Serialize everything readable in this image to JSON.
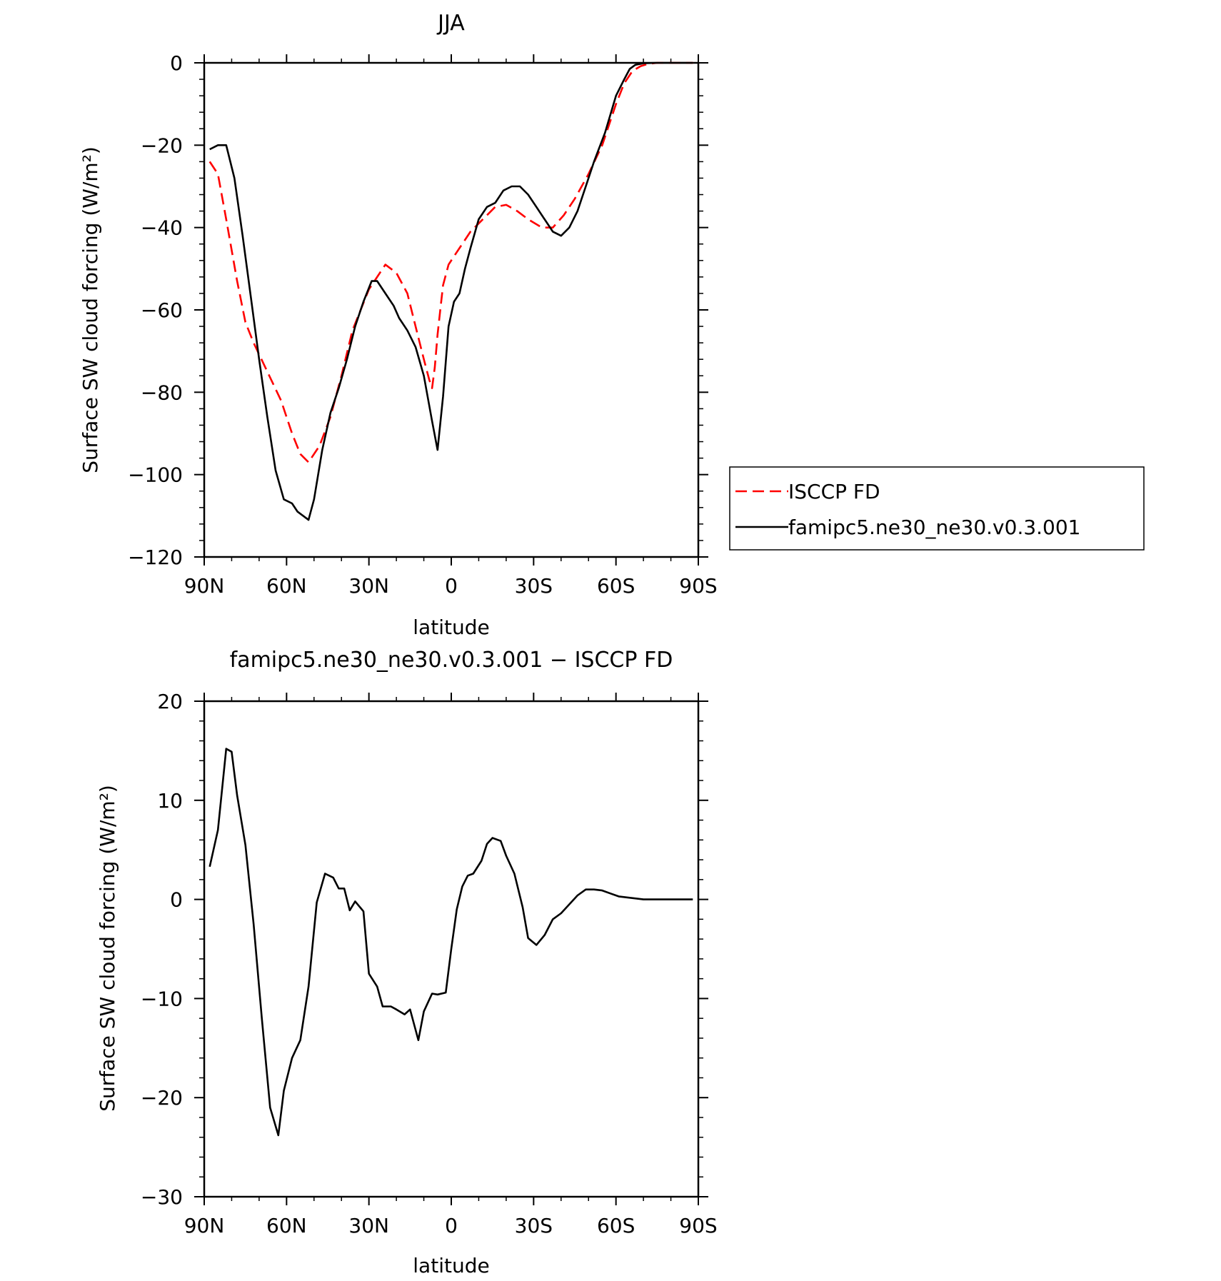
{
  "chart_data": [
    {
      "type": "line",
      "title": "JJA",
      "xlabel": "latitude",
      "ylabel": "Surface SW cloud forcing (W/m²)",
      "xlim": [
        90,
        -90
      ],
      "ylim": [
        -120,
        0
      ],
      "x_ticks": [
        90,
        60,
        30,
        0,
        -30,
        -60,
        -90
      ],
      "x_tick_labels": [
        "90N",
        "60N",
        "30N",
        "0",
        "30S",
        "60S",
        "90S"
      ],
      "y_ticks": [
        0,
        -20,
        -40,
        -60,
        -80,
        -100,
        -120
      ],
      "y_tick_labels": [
        "0",
        "−20",
        "−40",
        "−60",
        "−80",
        "−100",
        "−120"
      ],
      "legend_position": "right",
      "series": [
        {
          "name": "ISCCP FD",
          "color": "#ff0000",
          "dash": "dashed",
          "x": [
            88,
            85,
            82,
            78,
            75,
            72,
            67,
            62,
            58,
            55,
            52,
            48,
            44,
            40,
            36,
            33,
            30,
            27,
            24,
            20,
            16,
            13,
            10,
            8,
            7,
            6,
            5,
            4,
            3,
            1,
            -1,
            -3,
            -5,
            -7,
            -10,
            -13,
            -16,
            -20,
            -24,
            -28,
            -33,
            -37,
            -41,
            -45,
            -50,
            -55,
            -60,
            -63,
            -66,
            -69,
            -72,
            -75,
            -80,
            -85,
            -88
          ],
          "y": [
            -24,
            -27,
            -38,
            -53,
            -63,
            -68,
            -75,
            -82,
            -90,
            -95,
            -97,
            -93,
            -86,
            -76,
            -65,
            -60,
            -55,
            -52,
            -49,
            -51,
            -56,
            -64,
            -72,
            -77,
            -79,
            -74,
            -66,
            -60,
            -54,
            -49,
            -47,
            -45,
            -43,
            -41,
            -39,
            -37,
            -35,
            -34.5,
            -36,
            -38,
            -40,
            -40,
            -37,
            -33,
            -27,
            -20,
            -10,
            -5,
            -2,
            -0.8,
            -0.2,
            0,
            0,
            0,
            0
          ]
        },
        {
          "name": "famipc5.ne30_ne30.v0.3.001",
          "color": "#000000",
          "dash": "solid",
          "x": [
            88,
            85,
            82,
            79,
            76,
            73,
            70,
            67,
            64,
            61,
            58,
            56,
            54,
            52,
            50,
            47,
            44,
            41,
            38,
            35,
            32,
            29,
            27,
            24,
            21,
            19,
            16,
            13,
            10,
            7,
            5,
            3,
            1,
            -1,
            -3,
            -5,
            -7,
            -10,
            -13,
            -16,
            -19,
            -22,
            -25,
            -28,
            -31,
            -34,
            -37,
            -40,
            -43,
            -46,
            -49,
            -52,
            -56,
            -60,
            -63,
            -65,
            -67,
            -70,
            -75,
            -80,
            -85,
            -88
          ],
          "y": [
            -21,
            -20,
            -20,
            -28,
            -42,
            -57,
            -72,
            -86,
            -99,
            -106,
            -107,
            -109,
            -110,
            -111,
            -106,
            -94,
            -85,
            -79,
            -72,
            -64,
            -58,
            -53,
            -53,
            -56,
            -59,
            -62,
            -65,
            -69,
            -76,
            -87,
            -94,
            -81,
            -64,
            -58,
            -56,
            -50,
            -45,
            -38,
            -35,
            -34,
            -31,
            -30,
            -30,
            -32,
            -35,
            -38,
            -41,
            -42,
            -40,
            -36,
            -30,
            -24,
            -17,
            -8,
            -4,
            -1.5,
            -0.5,
            -0.1,
            0,
            0,
            0,
            0
          ]
        }
      ]
    },
    {
      "type": "line",
      "title": "famipc5.ne30_ne30.v0.3.001 − ISCCP FD",
      "xlabel": "latitude",
      "ylabel": "Surface SW cloud forcing (W/m²)",
      "xlim": [
        90,
        -90
      ],
      "ylim": [
        -30,
        20
      ],
      "x_ticks": [
        90,
        60,
        30,
        0,
        -30,
        -60,
        -90
      ],
      "x_tick_labels": [
        "90N",
        "60N",
        "30N",
        "0",
        "30S",
        "60S",
        "90S"
      ],
      "y_ticks": [
        20,
        10,
        0,
        -10,
        -20,
        -30
      ],
      "y_tick_labels": [
        "20",
        "10",
        "0",
        "−10",
        "−20",
        "−30"
      ],
      "series": [
        {
          "color": "#000000",
          "dash": "solid",
          "x": [
            88,
            85,
            82,
            80,
            78,
            75,
            72,
            69,
            66,
            63,
            61,
            58,
            55,
            52,
            49,
            46,
            43,
            41,
            39,
            37,
            35,
            32,
            30,
            27,
            25,
            22,
            20,
            17,
            15,
            12,
            10,
            7,
            5,
            2,
            0,
            -2,
            -4,
            -6,
            -8,
            -11,
            -13,
            -15,
            -18,
            -20,
            -23,
            -26,
            -28,
            -31,
            -34,
            -37,
            -40,
            -43,
            -46,
            -49,
            -52,
            -55,
            -58,
            -61,
            -64,
            -67,
            -70,
            -73,
            -76,
            -80,
            -84,
            -88
          ],
          "y": [
            3.3,
            7,
            15.2,
            14.9,
            10.5,
            5.5,
            -2.5,
            -12,
            -21,
            -23.8,
            -19.3,
            -16,
            -14.2,
            -8.8,
            -0.3,
            2.6,
            2.2,
            1.1,
            1.1,
            -1.1,
            -0.2,
            -1.2,
            -7.5,
            -8.8,
            -10.8,
            -10.8,
            -11.1,
            -11.6,
            -11.1,
            -14.2,
            -11.3,
            -9.5,
            -9.6,
            -9.4,
            -5,
            -1,
            1.3,
            2.4,
            2.6,
            3.9,
            5.6,
            6.2,
            5.9,
            4.4,
            2.6,
            -0.8,
            -3.9,
            -4.6,
            -3.6,
            -2.0,
            -1.4,
            -0.5,
            0.4,
            1.0,
            1.0,
            0.9,
            0.6,
            0.3,
            0.2,
            0.1,
            0,
            0,
            0,
            0,
            0,
            0
          ]
        }
      ]
    }
  ]
}
